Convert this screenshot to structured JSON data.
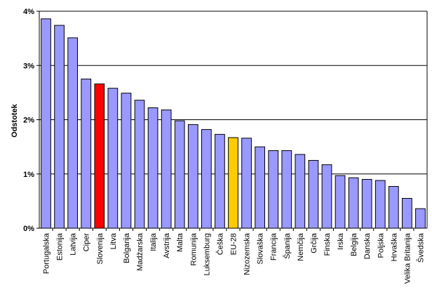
{
  "chart_data": {
    "type": "bar",
    "title": "",
    "xlabel": "",
    "ylabel": "Odstotek",
    "ylim": [
      0,
      4
    ],
    "yticks": [
      0,
      1,
      2,
      3,
      4
    ],
    "ytick_labels": [
      "0%",
      "1%",
      "2%",
      "3%",
      "4%"
    ],
    "grid": true,
    "legend": "none",
    "categories": [
      "Portugalska",
      "Estonija",
      "Latvija",
      "Ciper",
      "Slovenija",
      "Litva",
      "Bolgarija",
      "Madžarska",
      "Italija",
      "Avstrija",
      "Malta",
      "Romunija",
      "Luksemburg",
      "Češka",
      "EU-28",
      "Nizozemska",
      "Slovaška",
      "Francija",
      "Španija",
      "Nemčija",
      "Grčija",
      "Finska",
      "Irska",
      "Belgija",
      "Danska",
      "Poljska",
      "Hrvaška",
      "Velika Britanija",
      "Švedska"
    ],
    "values": [
      3.86,
      3.74,
      3.51,
      2.75,
      2.66,
      2.58,
      2.49,
      2.36,
      2.22,
      2.18,
      1.98,
      1.91,
      1.82,
      1.73,
      1.67,
      1.66,
      1.5,
      1.43,
      1.43,
      1.36,
      1.25,
      1.17,
      0.97,
      0.93,
      0.9,
      0.88,
      0.77,
      0.55,
      0.36
    ],
    "colors": {
      "default": "#9999ff",
      "highlight_slovenija": "#ff0000",
      "highlight_eu28": "#ffcc00",
      "stroke": "#000000"
    }
  }
}
